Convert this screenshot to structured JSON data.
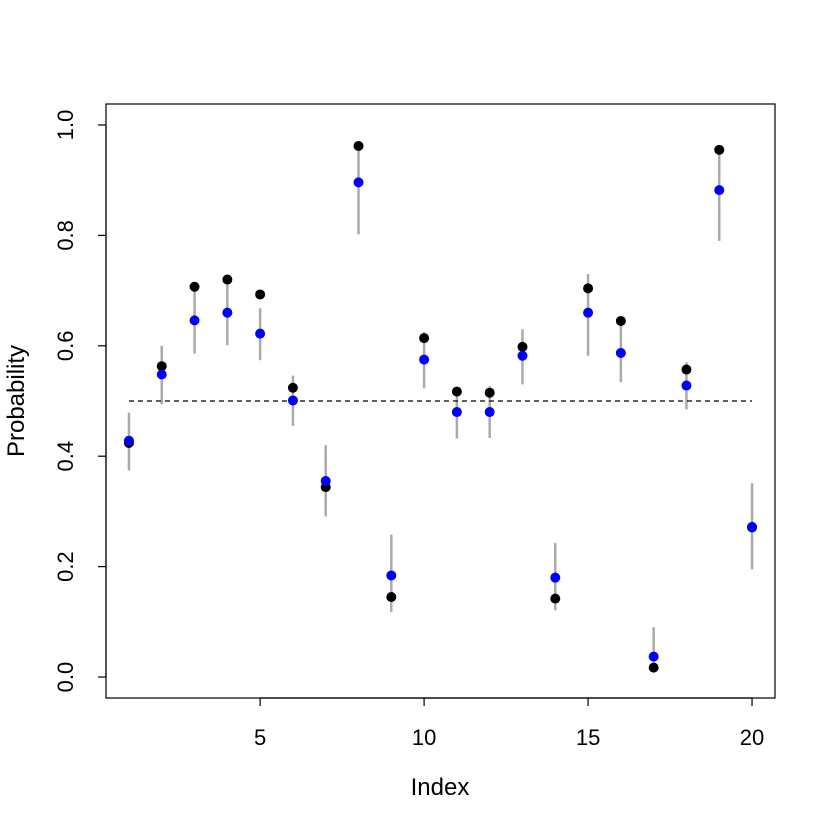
{
  "chart_data": {
    "type": "scatter",
    "xlabel": "Index",
    "ylabel": "Probability",
    "xlim": [
      0.3,
      20.7
    ],
    "ylim": [
      -0.038,
      1.038
    ],
    "xticks": [
      5,
      10,
      15,
      20
    ],
    "xtick_labels": [
      "5",
      "10",
      "15",
      "20"
    ],
    "yticks": [
      0,
      0.2,
      0.4,
      0.6,
      0.8,
      1
    ],
    "ytick_labels": [
      "0.0",
      "0.2",
      "0.4",
      "0.6",
      "0.8",
      "1.0"
    ],
    "grid": false,
    "reference_line": {
      "y": 0.5,
      "x_from": 1,
      "x_to": 20,
      "style": "dashed"
    },
    "x": [
      1,
      2,
      3,
      4,
      5,
      6,
      7,
      8,
      9,
      10,
      11,
      12,
      13,
      14,
      15,
      16,
      17,
      18,
      19,
      20
    ],
    "series": [
      {
        "color": "#000000",
        "values": [
          0.424,
          0.563,
          0.707,
          0.72,
          0.693,
          0.524,
          0.344,
          0.962,
          0.145,
          0.614,
          0.517,
          0.515,
          0.598,
          0.142,
          0.704,
          0.645,
          0.017,
          0.557,
          0.955,
          0.271
        ]
      },
      {
        "color": "#0000ff",
        "values": [
          0.428,
          0.548,
          0.646,
          0.66,
          0.622,
          0.501,
          0.355,
          0.896,
          0.184,
          0.575,
          0.48,
          0.48,
          0.582,
          0.18,
          0.66,
          0.587,
          0.037,
          0.528,
          0.882,
          0.272
        ],
        "interval_low": [
          0.374,
          0.494,
          0.586,
          0.601,
          0.574,
          0.455,
          0.291,
          0.802,
          0.118,
          0.523,
          0.432,
          0.433,
          0.53,
          0.121,
          0.582,
          0.534,
          0.008,
          0.485,
          0.79,
          0.195
        ],
        "interval_high": [
          0.479,
          0.6,
          0.705,
          0.72,
          0.668,
          0.546,
          0.42,
          0.96,
          0.258,
          0.625,
          0.525,
          0.527,
          0.63,
          0.243,
          0.73,
          0.637,
          0.09,
          0.57,
          0.953,
          0.351
        ],
        "interval_color": "#aaaaaa"
      }
    ]
  }
}
